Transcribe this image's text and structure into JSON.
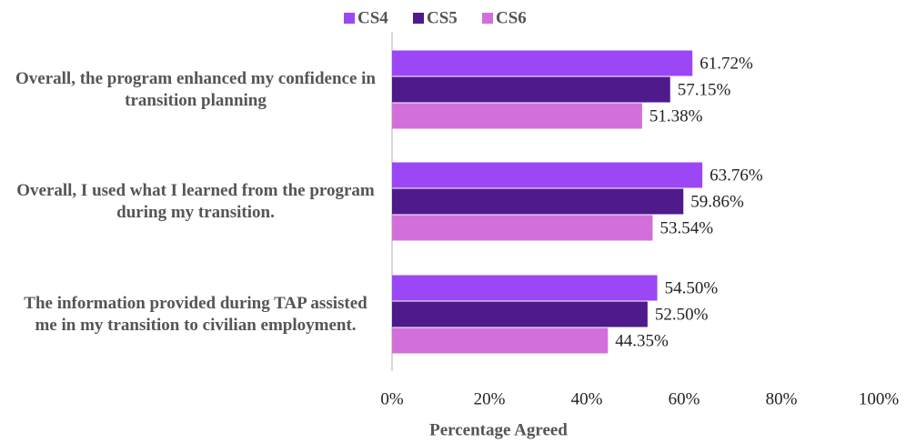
{
  "chart_data": {
    "type": "bar",
    "categories": [
      "Overall, the program enhanced my confidence in transition planning",
      "Overall, I used what I learned from the program during my transition.",
      "The information provided during TAP assisted me in my transition to civilian employment."
    ],
    "series": [
      {
        "name": "CS4",
        "color": "#9b47f5",
        "values": [
          61.72,
          63.76,
          54.5
        ],
        "value_labels": [
          "61.72%",
          "63.76%",
          "54.50%"
        ]
      },
      {
        "name": "CS5",
        "color": "#4f1a8c",
        "values": [
          57.15,
          59.86,
          52.5
        ],
        "value_labels": [
          "57.15%",
          "59.86%",
          "52.50%"
        ]
      },
      {
        "name": "CS6",
        "color": "#d36fdb",
        "values": [
          51.38,
          53.54,
          44.35
        ],
        "value_labels": [
          "51.38%",
          "53.54%",
          "44.35%"
        ]
      }
    ],
    "xlabel": "Percentage Agreed",
    "xlim": [
      0,
      100
    ],
    "xticks": [
      {
        "value": 0,
        "label": "0%"
      },
      {
        "value": 20,
        "label": "20%"
      },
      {
        "value": 40,
        "label": "40%"
      },
      {
        "value": 60,
        "label": "60%"
      },
      {
        "value": 80,
        "label": "80%"
      },
      {
        "value": 100,
        "label": "100%"
      }
    ],
    "legend": "top"
  }
}
